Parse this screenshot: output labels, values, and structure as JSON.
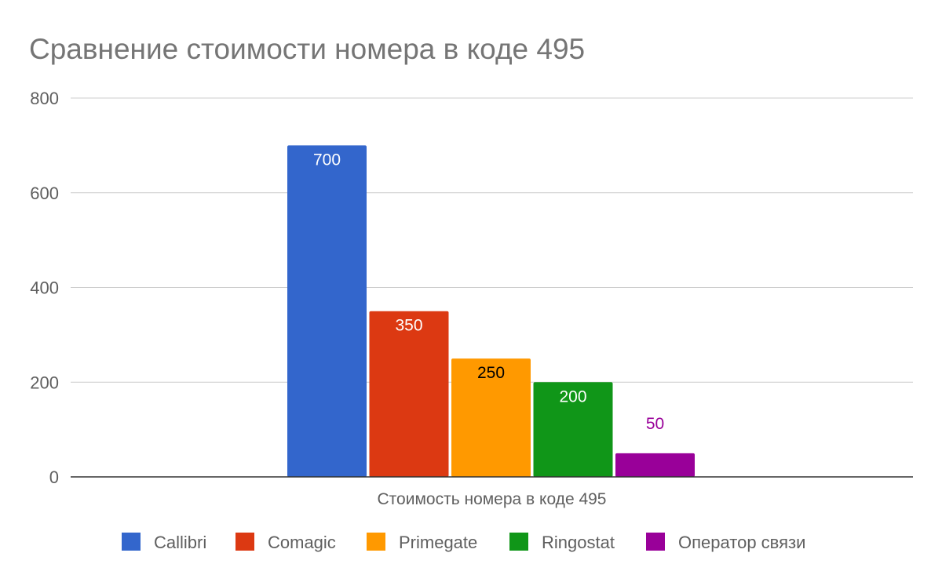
{
  "chart_data": {
    "type": "bar",
    "title": "Сравнение стоимости номера в коде 495",
    "categories": [
      "Стоимость номера в коде 495"
    ],
    "series": [
      {
        "name": "Callibri",
        "values": [
          700
        ],
        "color": "#3366cc",
        "label_color": "#ffffff"
      },
      {
        "name": "Comagic",
        "values": [
          350
        ],
        "color": "#dc3912",
        "label_color": "#ffffff"
      },
      {
        "name": "Primegate",
        "values": [
          250
        ],
        "color": "#ff9900",
        "label_color": "#000000"
      },
      {
        "name": "Ringostat",
        "values": [
          200
        ],
        "color": "#109618",
        "label_color": "#ffffff"
      },
      {
        "name": "Оператор связи",
        "values": [
          50
        ],
        "color": "#990099",
        "label_color": "#990099"
      }
    ],
    "yticks": [
      "0",
      "200",
      "400",
      "600",
      "800"
    ],
    "ylim": [
      0,
      800
    ],
    "grid": true,
    "legend_position": "bottom",
    "xlabel": "",
    "ylabel": ""
  }
}
